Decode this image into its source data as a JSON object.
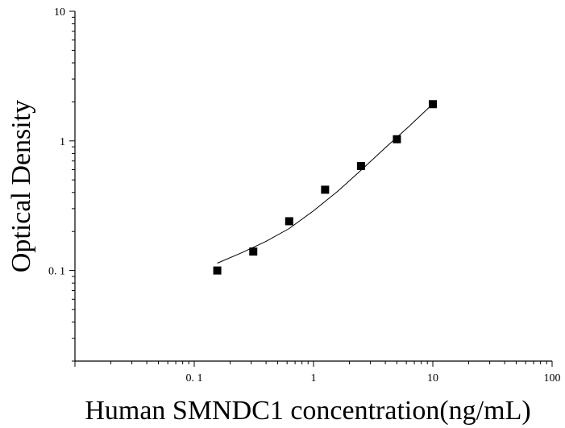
{
  "chart_data": {
    "type": "scatter",
    "title": "",
    "xlabel": "Human SMNDC1 concentration(ng/mL)",
    "ylabel": "Optical Density",
    "x_scale": "log",
    "y_scale": "log",
    "xlim": [
      0.01,
      100
    ],
    "ylim": [
      0.02,
      10
    ],
    "x_ticks": [
      0.1,
      1,
      10,
      100
    ],
    "x_tick_labels": [
      "0. 1",
      "1",
      "10",
      "100"
    ],
    "y_ticks": [
      0.1,
      1,
      10
    ],
    "y_tick_labels": [
      "0. 1",
      "1",
      "10"
    ],
    "grid": false,
    "legend": "none",
    "series": [
      {
        "marker": "square",
        "color": "#000000",
        "points": [
          {
            "x": 0.156,
            "y": 0.1
          },
          {
            "x": 0.3125,
            "y": 0.14
          },
          {
            "x": 0.625,
            "y": 0.24
          },
          {
            "x": 1.25,
            "y": 0.42
          },
          {
            "x": 2.5,
            "y": 0.64
          },
          {
            "x": 5,
            "y": 1.03
          },
          {
            "x": 10,
            "y": 1.92
          }
        ]
      }
    ],
    "fit_curve": {
      "style": "line",
      "color": "#000000",
      "points": [
        {
          "x": 0.156,
          "y": 0.114
        },
        {
          "x": 0.25,
          "y": 0.137
        },
        {
          "x": 0.4,
          "y": 0.168
        },
        {
          "x": 0.625,
          "y": 0.211
        },
        {
          "x": 1,
          "y": 0.289
        },
        {
          "x": 1.6,
          "y": 0.41
        },
        {
          "x": 2.5,
          "y": 0.593
        },
        {
          "x": 4,
          "y": 0.885
        },
        {
          "x": 6.3,
          "y": 1.29
        },
        {
          "x": 10,
          "y": 1.93
        }
      ]
    }
  }
}
